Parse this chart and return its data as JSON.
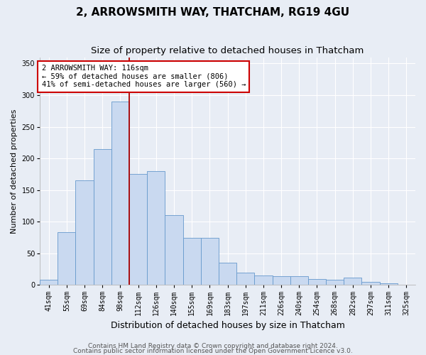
{
  "title": "2, ARROWSMITH WAY, THATCHAM, RG19 4GU",
  "subtitle": "Size of property relative to detached houses in Thatcham",
  "xlabel": "Distribution of detached houses by size in Thatcham",
  "ylabel": "Number of detached properties",
  "bin_labels": [
    "41sqm",
    "55sqm",
    "69sqm",
    "84sqm",
    "98sqm",
    "112sqm",
    "126sqm",
    "140sqm",
    "155sqm",
    "169sqm",
    "183sqm",
    "197sqm",
    "211sqm",
    "226sqm",
    "240sqm",
    "254sqm",
    "268sqm",
    "282sqm",
    "297sqm",
    "311sqm",
    "325sqm"
  ],
  "bar_heights": [
    8,
    83,
    165,
    215,
    290,
    175,
    180,
    110,
    75,
    75,
    35,
    20,
    15,
    14,
    14,
    10,
    8,
    12,
    5,
    3,
    1
  ],
  "bar_color": "#c9d9f0",
  "bar_edge_color": "#6699cc",
  "vline_color": "#aa0000",
  "vline_x": 4.5,
  "annotation_text": "2 ARROWSMITH WAY: 116sqm\n← 59% of detached houses are smaller (806)\n41% of semi-detached houses are larger (560) →",
  "annotation_box_color": "#ffffff",
  "annotation_box_edge": "#cc0000",
  "ylim": [
    0,
    360
  ],
  "yticks": [
    0,
    50,
    100,
    150,
    200,
    250,
    300,
    350
  ],
  "footer1": "Contains HM Land Registry data © Crown copyright and database right 2024.",
  "footer2": "Contains public sector information licensed under the Open Government Licence v3.0.",
  "bg_color": "#e8edf5",
  "plot_bg_color": "#e8edf5",
  "title_fontsize": 11,
  "subtitle_fontsize": 9.5,
  "tick_fontsize": 7,
  "ylabel_fontsize": 8,
  "xlabel_fontsize": 9,
  "footer_fontsize": 6.5,
  "grid_color": "#ffffff",
  "ann_fontsize": 7.5
}
